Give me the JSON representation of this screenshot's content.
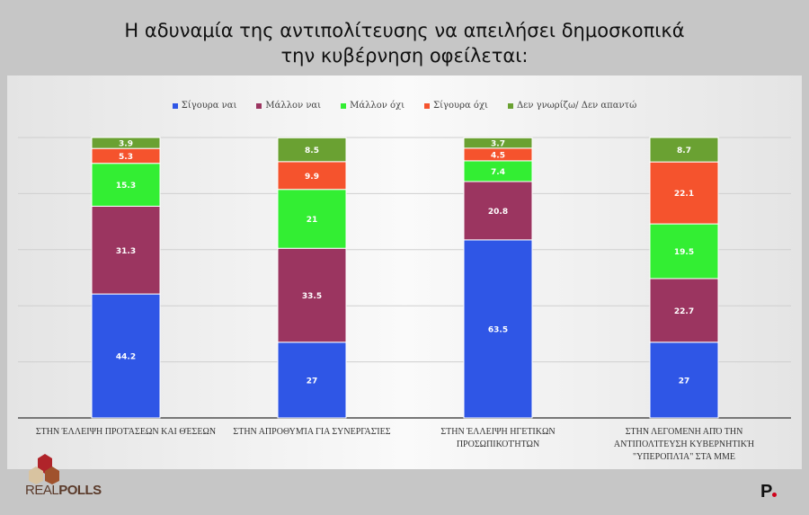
{
  "title_lines": [
    "Η αδυναμία της αντιπολίτευσης να απειλήσει δημοσκοπικά",
    "την κυβέρνηση οφείλεται:"
  ],
  "chart_data": {
    "type": "bar",
    "stacked": true,
    "categories": [
      [
        "ΣΤΗΝ ΈΛΛΕΙΨΗ ΠΡΟΤΆΣΕΩΝ ΚΑΙ ΘΈΣΕΩΝ"
      ],
      [
        "ΣΤΗΝ ΑΠΡΟΘΥΜΊΑ ΓΙΑ ΣΥΝΕΡΓΑΣΊΕΣ"
      ],
      [
        "ΣΤΗΝ ΈΛΛΕΙΨΗ ΗΓΕΤΙΚΩΝ",
        "ΠΡΟΣΩΠΙΚΟΤΉΤΩΝ"
      ],
      [
        "ΣΤΗΝ ΛΕΓΟΜΕΝΗ ΑΠΌ ΤΗΝ",
        "ΑΝΤΙΠΟΛΊΤΕΥΣΗ ΚΥΒΕΡΝΗΤΙΚΉ",
        "\"ΥΠΕΡΟΠΛΊΑ\" ΣΤΑ ΜΜΕ"
      ]
    ],
    "series": [
      {
        "name": "Σίγουρα ναι",
        "color": "#2f56e6",
        "values": [
          44.2,
          27,
          63.5,
          27
        ]
      },
      {
        "name": "Μάλλον ναι",
        "color": "#9b3560",
        "values": [
          31.3,
          33.5,
          20.8,
          22.7
        ]
      },
      {
        "name": "Μάλλον όχι",
        "color": "#33ee33",
        "values": [
          15.3,
          21,
          7.4,
          19.5
        ]
      },
      {
        "name": "Σίγουρα όχι",
        "color": "#f5532d",
        "values": [
          5.3,
          9.9,
          4.5,
          22.1
        ]
      },
      {
        "name": "Δεν γνωρίζω/ Δεν απαντώ",
        "color": "#6aa132",
        "values": [
          3.9,
          8.5,
          3.7,
          8.7
        ]
      }
    ],
    "ylim": [
      0,
      100
    ],
    "grid": true,
    "legend_position": "top"
  },
  "logos": {
    "left": "REALPOLLS",
    "right": "P."
  }
}
